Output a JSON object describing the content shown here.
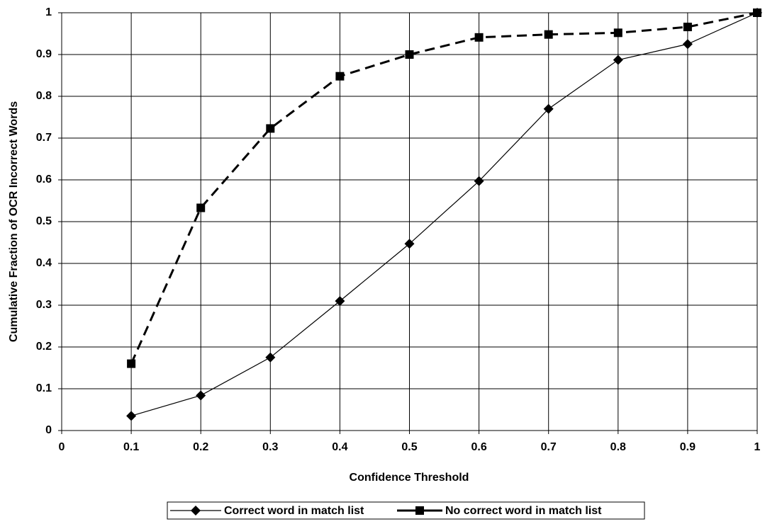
{
  "chart_data": {
    "type": "line",
    "xlabel": "Confidence Threshold",
    "ylabel": "Cumulative Fraction of OCR Incorrect Words",
    "x": [
      0.1,
      0.2,
      0.3,
      0.4,
      0.5,
      0.6,
      0.7,
      0.8,
      0.9,
      1
    ],
    "series": [
      {
        "name": "Correct word in match list",
        "color": "#000000",
        "marker": "diamond",
        "dash": "solid",
        "values": [
          0.035,
          0.084,
          0.175,
          0.31,
          0.447,
          0.597,
          0.77,
          0.887,
          0.925,
          1
        ]
      },
      {
        "name": "No correct word in match list",
        "color": "#000000",
        "marker": "square",
        "dash": "dashed",
        "values": [
          0.16,
          0.533,
          0.723,
          0.848,
          0.9,
          0.941,
          0.948,
          0.952,
          0.966,
          1
        ]
      }
    ],
    "xlim": [
      0,
      1
    ],
    "xticks": [
      0,
      0.1,
      0.2,
      0.3,
      0.4,
      0.5,
      0.6,
      0.7,
      0.8,
      0.9,
      1
    ],
    "ylim": [
      0,
      1
    ],
    "yticks": [
      0,
      0.1,
      0.2,
      0.3,
      0.4,
      0.5,
      0.6,
      0.7,
      0.8,
      0.9,
      1
    ],
    "grid": true,
    "legend": "bottom"
  }
}
